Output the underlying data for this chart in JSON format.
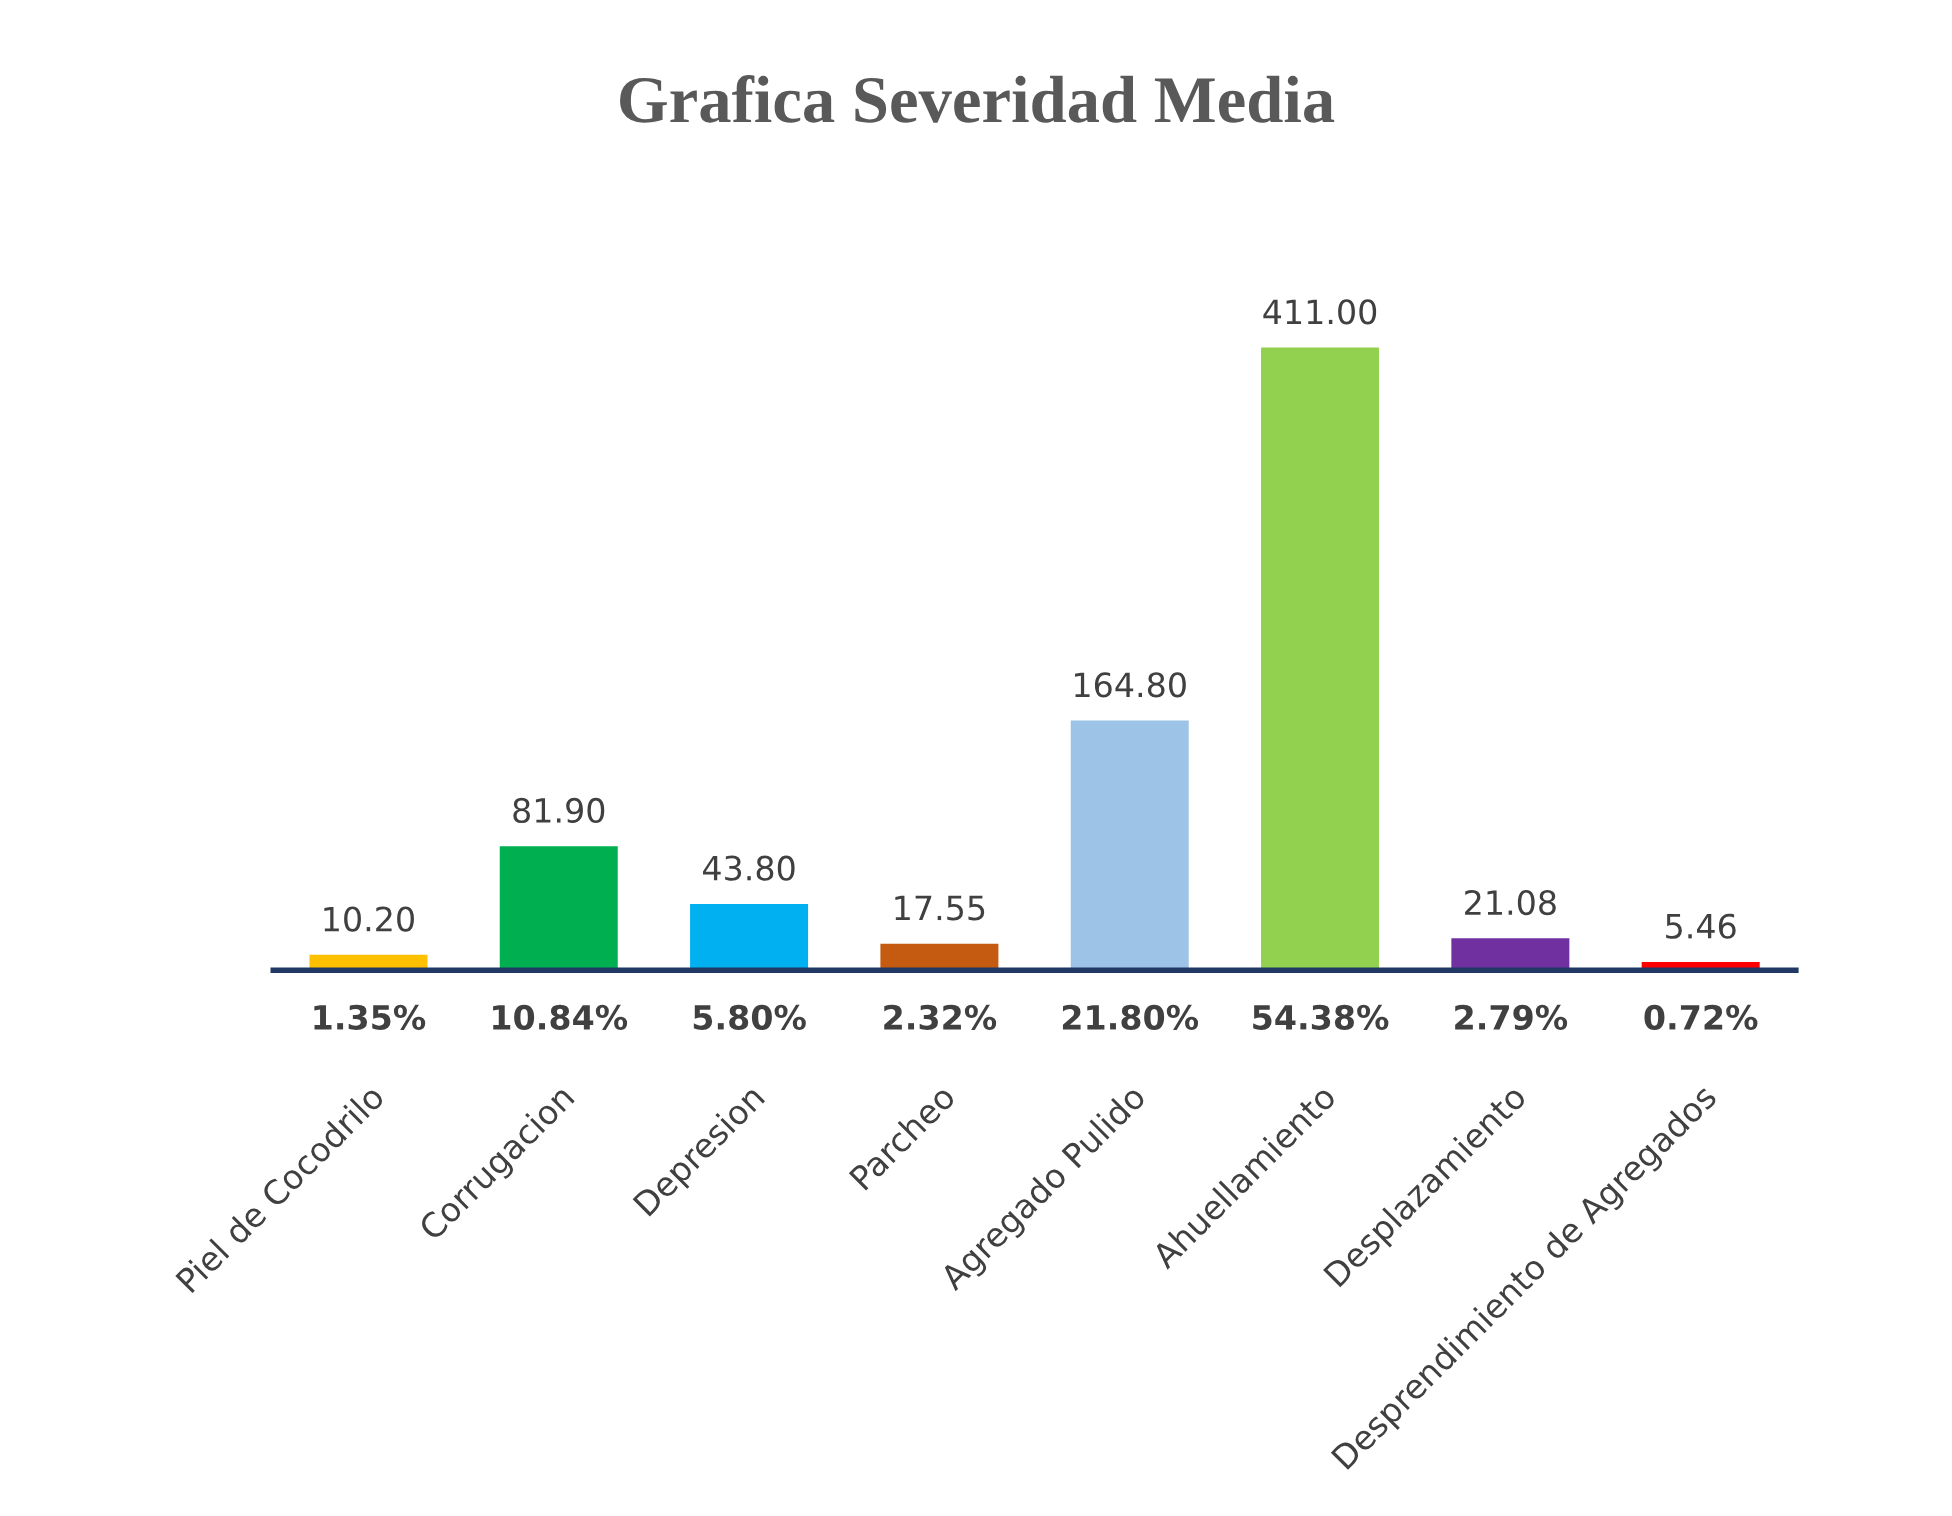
{
  "chart_data": {
    "type": "bar",
    "title": "Grafica Severidad Media",
    "categories": [
      "Piel de Cocodrilo",
      "Corrugacion",
      "Depresion",
      "Parcheo",
      "Agregado Pulido",
      "Ahuellamiento",
      "Desplazamiento",
      "Desprendimiento de Agregados"
    ],
    "values": [
      10.2,
      81.9,
      43.8,
      17.55,
      164.8,
      411.0,
      21.08,
      5.46
    ],
    "colors": [
      "#ffc000",
      "#00b050",
      "#00b0f0",
      "#c55a11",
      "#9dc3e6",
      "#92d050",
      "#7030a0",
      "#ff0000"
    ],
    "value_labels": [
      "10.20",
      "81.90",
      "43.80",
      "17.55",
      "164.80",
      "411.00",
      "21.08",
      "5.46"
    ],
    "annotations": [
      "1.35%",
      "10.84%",
      "5.80%",
      "2.32%",
      "21.80%",
      "54.38%",
      "2.79%",
      "0.72%"
    ],
    "grid": false,
    "legend": false
  }
}
